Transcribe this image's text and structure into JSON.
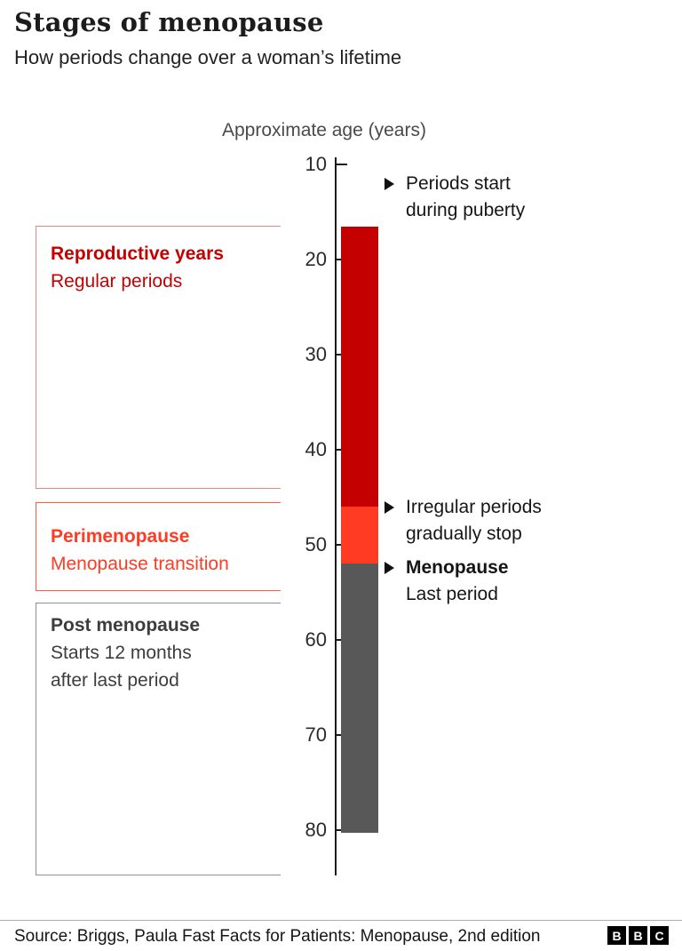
{
  "header": {
    "title": "Stages of menopause",
    "subtitle": "How periods change over a woman’s lifetime"
  },
  "chart_data": {
    "type": "bar",
    "subtype": "vertical-age-timeline",
    "axis_title": "Approximate age (years)",
    "axis": {
      "min": 10,
      "max": 80,
      "ticks": [
        10,
        20,
        30,
        40,
        50,
        60,
        70,
        80
      ],
      "unit": "years"
    },
    "segments": [
      {
        "id": "reproductive-years",
        "name": "Reproductive years",
        "desc": "Regular periods",
        "start": 16.5,
        "end": 46,
        "color": "#c40000",
        "label_color": "#c40000",
        "bracket_color": "#d98b84"
      },
      {
        "id": "perimenopause",
        "name": "Perimenopause",
        "desc": "Menopause transition",
        "start": 46,
        "end": 52,
        "color": "#ff3b24",
        "label_color": "#ff3b24",
        "bracket_color": "#ff5a45"
      },
      {
        "id": "post-menopause",
        "name": "Post menopause",
        "desc": "Starts 12 months after last period",
        "start": 52,
        "end": 80.3,
        "color": "#585858",
        "label_color": "#3d3d3d",
        "bracket_color": "#8f8f8f"
      }
    ],
    "annotations": [
      {
        "id": "periods-start",
        "age": 12,
        "lines": [
          {
            "text": "Periods start",
            "bold": false
          },
          {
            "text": "during puberty",
            "bold": false
          }
        ]
      },
      {
        "id": "irregular-periods",
        "age": 46,
        "lines": [
          {
            "text": "Irregular periods",
            "bold": false
          },
          {
            "text": "gradually stop",
            "bold": false
          }
        ]
      },
      {
        "id": "menopause",
        "age": 52.3,
        "lines": [
          {
            "text": "Menopause",
            "bold": true
          },
          {
            "text": "Last period",
            "bold": false
          }
        ]
      }
    ]
  },
  "footer": {
    "source": "Source: Briggs, Paula Fast Facts for Patients: Menopause, 2nd edition",
    "logo_letters": [
      "B",
      "B",
      "C"
    ]
  }
}
